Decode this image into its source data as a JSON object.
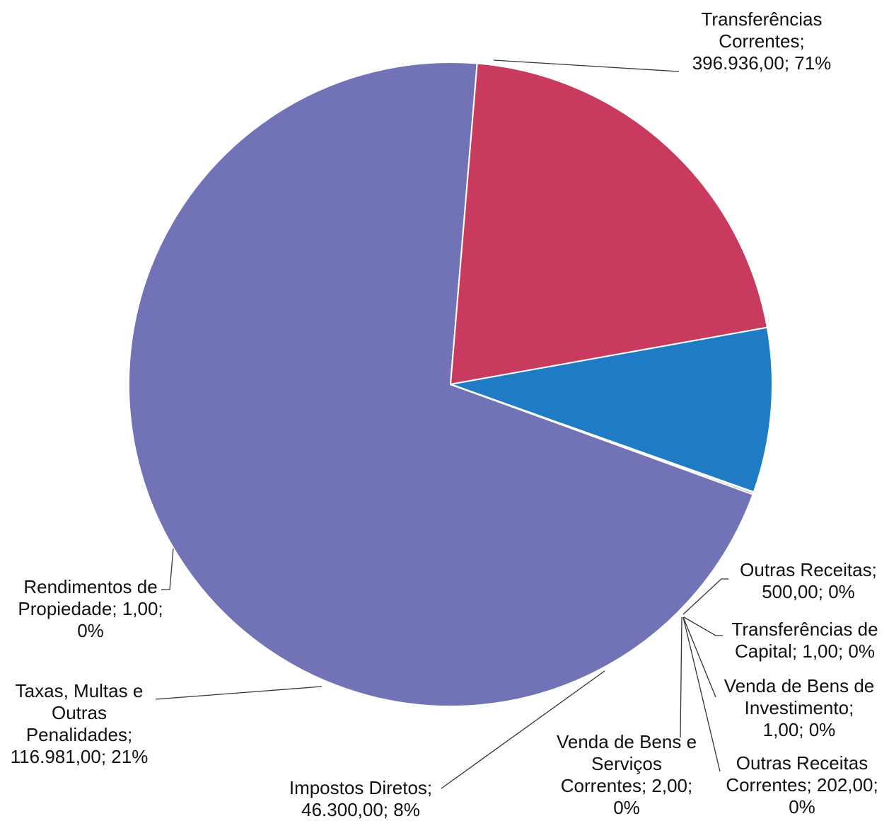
{
  "chart_data": {
    "type": "pie",
    "title": "",
    "series": [
      {
        "slices": [
          {
            "key": "transf_correntes",
            "label": "Transferências Correntes",
            "value": 396936.0,
            "percent": 71,
            "color": "#7272B6",
            "label_lines": [
              "Transferências",
              "Correntes;",
              "396.936,00; 71%"
            ]
          },
          {
            "key": "rendimentos",
            "label": "Rendimentos de Propiedade",
            "value": 1.0,
            "percent": 0,
            "color": "#C83A5E",
            "label_lines": [
              "Rendimentos de",
              "Propiedade; 1,00;",
              "0%"
            ]
          },
          {
            "key": "taxas",
            "label": "Taxas, Multas e Outras Penalidades",
            "value": 116981.0,
            "percent": 21,
            "color": "#C83A5E",
            "label_lines": [
              "Taxas, Multas e",
              "Outras",
              "Penalidades;",
              "116.981,00; 21%"
            ]
          },
          {
            "key": "impostos",
            "label": "Impostos Diretos",
            "value": 46300.0,
            "percent": 8,
            "color": "#1F7CC4",
            "label_lines": [
              "Impostos Diretos;",
              "46.300,00; 8%"
            ]
          },
          {
            "key": "venda_bens_servicos",
            "label": "Venda de Bens e Serviços Correntes",
            "value": 2.0,
            "percent": 0,
            "color": "#1F7CC4",
            "label_lines": [
              "Venda de Bens e",
              "Serviços",
              "Correntes; 2,00;",
              "0%"
            ]
          },
          {
            "key": "outras_rec_correntes",
            "label": "Outras Receitas Correntes",
            "value": 202.0,
            "percent": 0,
            "color": "#7272B6",
            "label_lines": [
              "Outras Receitas",
              "Correntes; 202,00;",
              "0%"
            ]
          },
          {
            "key": "venda_bens_invest",
            "label": "Venda de Bens de Investimento",
            "value": 1.0,
            "percent": 0,
            "color": "#7272B6",
            "label_lines": [
              "Venda de Bens de",
              "Investimento;",
              "1,00; 0%"
            ]
          },
          {
            "key": "transf_capital",
            "label": "Transferências de Capital",
            "value": 1.0,
            "percent": 0,
            "color": "#7272B6",
            "label_lines": [
              "Transferências de",
              "Capital; 1,00; 0%"
            ]
          },
          {
            "key": "outras_receitas",
            "label": "Outras Receitas",
            "value": 500.0,
            "percent": 0,
            "color": "#7272B6",
            "label_lines": [
              "Outras Receitas;",
              "500,00; 0%"
            ]
          }
        ]
      }
    ],
    "legend": "none (data labels with leader lines)"
  }
}
